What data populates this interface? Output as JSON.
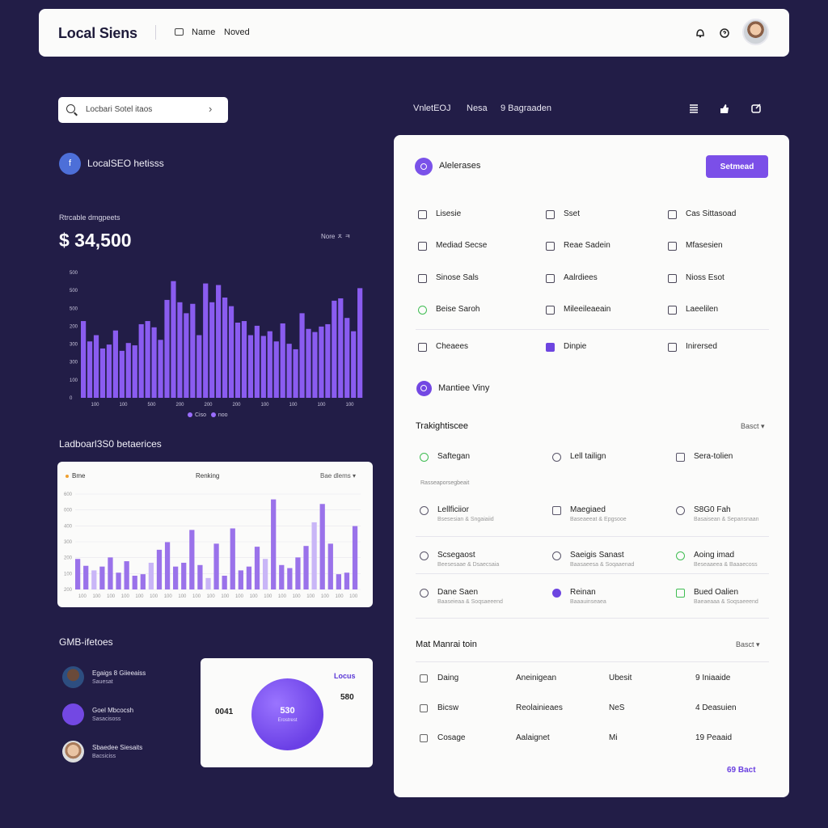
{
  "header": {
    "brand": "Local Siens",
    "nav": [
      "Name",
      "Noved"
    ],
    "icons": [
      "bell-icon",
      "help-icon"
    ]
  },
  "search": {
    "placeholder": "Locbari Sotel itaos"
  },
  "left": {
    "section_title": "LocalSEO hetisss",
    "overview": {
      "label": "Rtrcable dmgpeets",
      "value": "$ 34,500",
      "legend": "Nore ㅊ ㅋ"
    },
    "chart_legend": [
      "Ciso",
      "noo"
    ],
    "leaderboard_title": "Ladboarl3S0 betaerices",
    "card2": {
      "left": "Bme",
      "center": "Renking",
      "right": "Bae dlems ▾"
    },
    "gmb_title": "GMB-ifetoes",
    "gmb_items": [
      {
        "name": "Egaigs 8 Giieeaiss",
        "sub": "Sauesat"
      },
      {
        "name": "Goel Mbcocsh",
        "sub": "Sasacisoss"
      },
      {
        "name": "Sbaedee Siesaits",
        "sub": "Bacsiciss"
      }
    ],
    "pie_card": {
      "tag": "Locus",
      "number": "580",
      "left_value": "0041",
      "center_value": "530",
      "center_sub": "Erostrest"
    }
  },
  "right_header": {
    "items": [
      "VnletEOJ",
      "Nesa",
      "9 Bagraaden"
    ]
  },
  "panel": {
    "title": "Alelerases",
    "button": "Setmead",
    "grid": [
      {
        "label": "Lisesie",
        "icon": "home-icon"
      },
      {
        "label": "Sset",
        "icon": "store-icon"
      },
      {
        "label": "Cas Sittasoad",
        "icon": "grid-icon"
      },
      {
        "label": "Mediad Secse",
        "icon": "list-icon"
      },
      {
        "label": "Reae Sadein",
        "icon": "monitor-icon"
      },
      {
        "label": "Mfasesien",
        "icon": "chart-icon"
      },
      {
        "label": "Sinose Sals",
        "icon": "edit-icon"
      },
      {
        "label": "Aalrdiees",
        "icon": "calendar-icon"
      },
      {
        "label": "Nioss Esot",
        "icon": "image-icon"
      },
      {
        "label": "Beise Saroh",
        "icon": "check-icon"
      },
      {
        "label": "Mileeileaeain",
        "icon": "folder-icon"
      },
      {
        "label": "Laeelilen",
        "icon": "doc-icon"
      },
      {
        "label": "Cheaees",
        "icon": "tag-icon"
      },
      {
        "label": "Dinpie",
        "icon": "box-icon"
      },
      {
        "label": "Inirersed",
        "icon": "info-icon"
      }
    ],
    "mv_title": "Mantiee Viny",
    "tracking": {
      "title": "Trakightiscee",
      "right": "Basct ▾",
      "placeholder": "Rasseaporsegbeait",
      "top": [
        {
          "label": "Saftegan",
          "icon": "check-circle-icon"
        },
        {
          "label": "Lell tailign",
          "icon": "link-icon"
        },
        {
          "label": "Sera-tolien",
          "icon": "window-icon"
        }
      ],
      "rows": [
        [
          {
            "label": "Lellficiior",
            "sub": "Bsesesian & Sngaiaiid",
            "icon": "globe-icon"
          },
          {
            "label": "Maegiaed",
            "sub": "Baseaeeat & Epgsooe",
            "icon": "image-icon"
          },
          {
            "label": "S8G0 Fah",
            "sub": "Basaisean & Sepansnaan",
            "icon": "target-icon"
          }
        ],
        [
          {
            "label": "Scsegaost",
            "sub": "Beesesaae & Dsaecsaia",
            "icon": "clock-icon"
          },
          {
            "label": "Saeigis Sanast",
            "sub": "Baasaeesa & Soqaaenad",
            "icon": "pin-icon"
          },
          {
            "label": "Aoing imad",
            "sub": "Beseaaeea & Baaaecoss",
            "icon": "check-circle-icon"
          }
        ],
        [
          {
            "label": "Dane Saen",
            "sub": "Baaseieaa & Soqsaeeend",
            "icon": "clock-icon"
          },
          {
            "label": "Reinan",
            "sub": "Baaauinseaea",
            "icon": "user-icon"
          },
          {
            "label": "Bued Oalien",
            "sub": "Baeaeaaa & Soqsaeeend",
            "icon": "check-square-icon"
          }
        ]
      ]
    },
    "table": {
      "title": "Mat Manrai toin",
      "right": "Basct ▾",
      "rows": [
        {
          "c1": "Daing",
          "c2": "Aneinigean",
          "c3": "Ubesit",
          "c4": "9 Iniaaide"
        },
        {
          "c1": "Bicsw",
          "c2": "Reolainieaes",
          "c3": "NeS",
          "c4": "4 Deasuien"
        },
        {
          "c1": "Cosage",
          "c2": "Aalaignet",
          "c3": "Mi",
          "c4": "19 Peaaid"
        }
      ]
    },
    "footer": "69 Bact"
  },
  "chart_data": [
    {
      "type": "bar",
      "title": "",
      "ylabels": [
        "500",
        "500",
        "500",
        "200",
        "300",
        "300",
        "100",
        "0"
      ],
      "xlabels": [
        "100",
        "100",
        "500",
        "200",
        "200",
        "200",
        "100",
        "100",
        "100",
        "100"
      ],
      "values": [
        98,
        72,
        80,
        63,
        68,
        86,
        60,
        70,
        67,
        94,
        98,
        90,
        74,
        125,
        149,
        122,
        108,
        120,
        80,
        146,
        122,
        144,
        128,
        117,
        96,
        98,
        80,
        92,
        79,
        85,
        72,
        95,
        69,
        62,
        108,
        88,
        84,
        91,
        94,
        124,
        127,
        102,
        85,
        140
      ]
    },
    {
      "type": "bar",
      "title": "",
      "ylabels": [
        "600",
        "000",
        "400",
        "300",
        "200",
        "100",
        "200"
      ],
      "xlabels": [
        "100",
        "100",
        "100",
        "100",
        "100",
        "100",
        "100",
        "100",
        "100",
        "100",
        "100",
        "100",
        "100",
        "100",
        "100",
        "100",
        "100",
        "100",
        "100",
        "100"
      ],
      "values": [
        40,
        31,
        25,
        30,
        42,
        22,
        37,
        18,
        20,
        35,
        52,
        62,
        30,
        35,
        78,
        32,
        15,
        60,
        18,
        80,
        25,
        30,
        56,
        40,
        118,
        32,
        28,
        42,
        57,
        88,
        112,
        60,
        20,
        22,
        83
      ]
    }
  ]
}
